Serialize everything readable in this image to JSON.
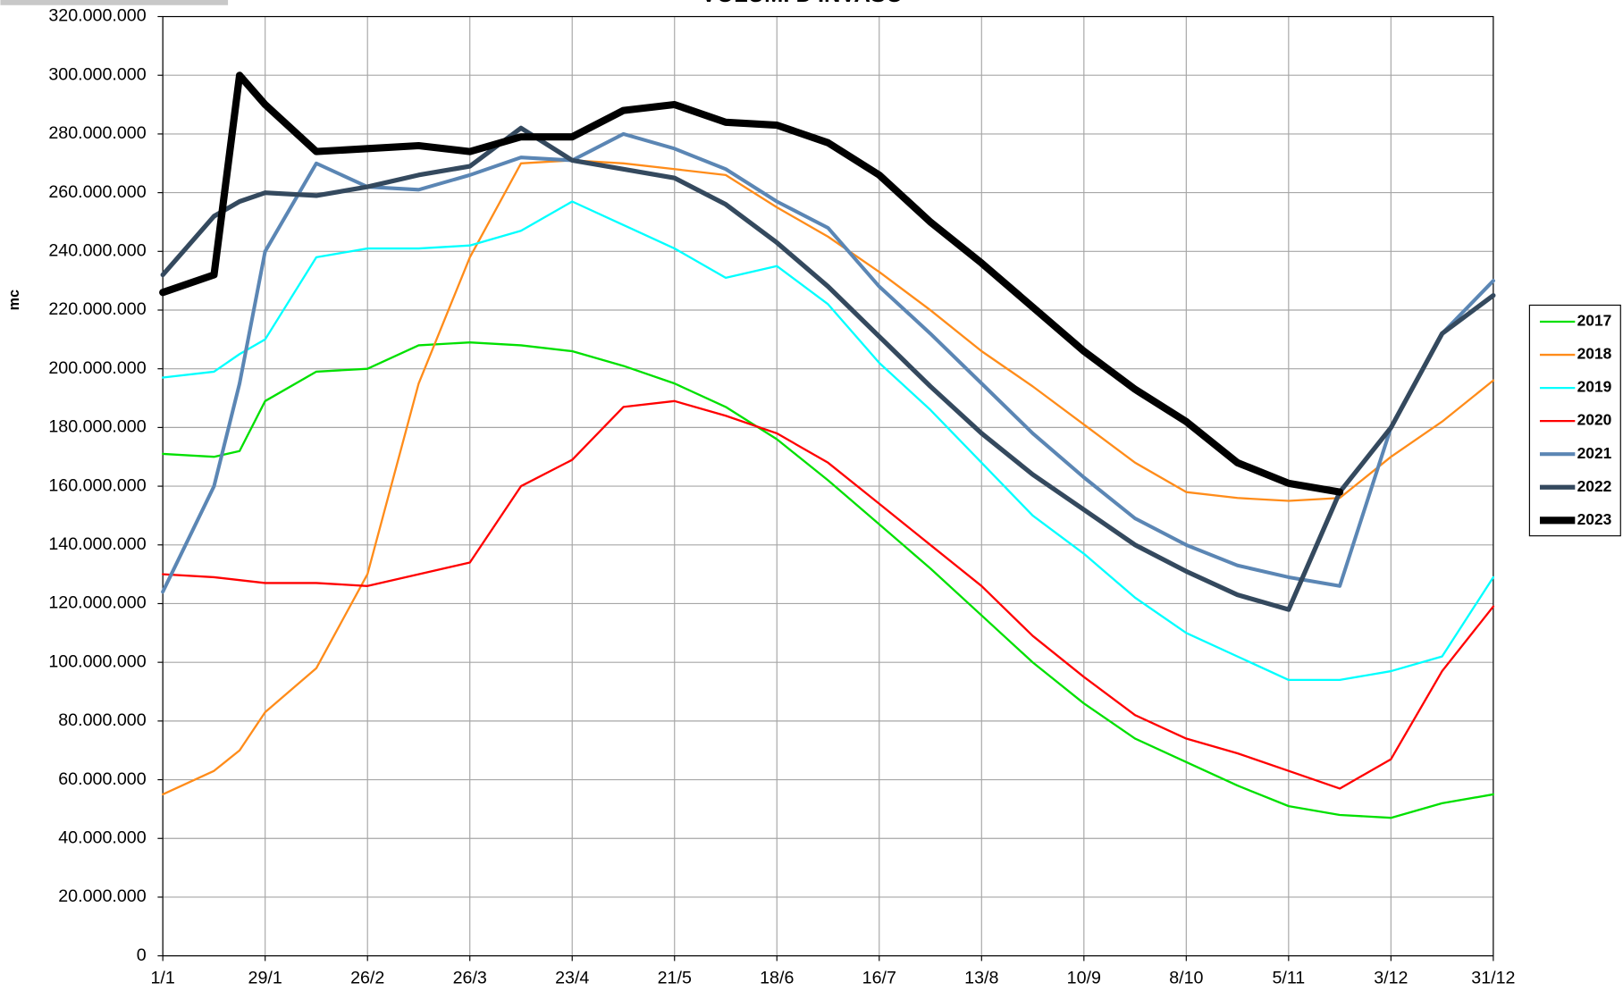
{
  "chart_data": {
    "type": "line",
    "title": "VOLUMI D'INVASO",
    "ylabel": "mc",
    "x": [
      1,
      15,
      22,
      29,
      43,
      57,
      71,
      85,
      99,
      113,
      127,
      141,
      155,
      169,
      183,
      197,
      211,
      225,
      239,
      253,
      267,
      281,
      295,
      309,
      323,
      337,
      351,
      365
    ],
    "series": [
      {
        "name": "2017",
        "color": "#00e000",
        "values": [
          171000000,
          170000000,
          172000000,
          189000000,
          199000000,
          200000000,
          208000000,
          209000000,
          208000000,
          206000000,
          201000000,
          195000000,
          187000000,
          176000000,
          162000000,
          147000000,
          132000000,
          116000000,
          100000000,
          86000000,
          74000000,
          66000000,
          58000000,
          51000000,
          48000000,
          47000000,
          52000000,
          55000000
        ]
      },
      {
        "name": "2018",
        "color": "#ff8c1a",
        "values": [
          55000000,
          63000000,
          70000000,
          83000000,
          98000000,
          130000000,
          195000000,
          238000000,
          270000000,
          271000000,
          270000000,
          268000000,
          266000000,
          255000000,
          245000000,
          233000000,
          220000000,
          206000000,
          194000000,
          181000000,
          168000000,
          158000000,
          156000000,
          155000000,
          156000000,
          170000000,
          182000000,
          196000000
        ]
      },
      {
        "name": "2019",
        "color": "#00ffff",
        "values": [
          197000000,
          199000000,
          205000000,
          210000000,
          238000000,
          241000000,
          241000000,
          242000000,
          247000000,
          257000000,
          249000000,
          241000000,
          231000000,
          235000000,
          222000000,
          202000000,
          186000000,
          168000000,
          150000000,
          137000000,
          122000000,
          110000000,
          102000000,
          94000000,
          94000000,
          97000000,
          102000000,
          129000000
        ]
      },
      {
        "name": "2020",
        "color": "#ff0000",
        "values": [
          130000000,
          129000000,
          128000000,
          127000000,
          127000000,
          126000000,
          130000000,
          134000000,
          160000000,
          169000000,
          187000000,
          189000000,
          184000000,
          178000000,
          168000000,
          154000000,
          140000000,
          126000000,
          109000000,
          95000000,
          82000000,
          74000000,
          69000000,
          63000000,
          57000000,
          67000000,
          97000000,
          119000000
        ]
      },
      {
        "name": "2021",
        "color": "#5b86b4",
        "values": [
          124000000,
          160000000,
          195000000,
          240000000,
          270000000,
          262000000,
          261000000,
          266000000,
          272000000,
          271000000,
          280000000,
          275000000,
          268000000,
          257000000,
          248000000,
          228000000,
          212000000,
          195000000,
          178000000,
          163000000,
          149000000,
          140000000,
          133000000,
          129000000,
          126000000,
          180000000,
          212000000,
          230000000
        ]
      },
      {
        "name": "2022",
        "color": "#34495e",
        "values": [
          232000000,
          252000000,
          257000000,
          260000000,
          259000000,
          262000000,
          266000000,
          269000000,
          282000000,
          271000000,
          268000000,
          265000000,
          256000000,
          243000000,
          228000000,
          211000000,
          194000000,
          178000000,
          164000000,
          152000000,
          140000000,
          131000000,
          123000000,
          118000000,
          158000000,
          180000000,
          212000000,
          225000000
        ]
      },
      {
        "name": "2023",
        "color": "#000000",
        "values": [
          226000000,
          232000000,
          300000000,
          290000000,
          274000000,
          275000000,
          276000000,
          274000000,
          279000000,
          279000000,
          288000000,
          290000000,
          284000000,
          283000000,
          277000000,
          266000000,
          250000000,
          236000000,
          221000000,
          206000000,
          193000000,
          182000000,
          168000000,
          161000000,
          158000000,
          null,
          null,
          null
        ]
      }
    ],
    "xlim": [
      1,
      365
    ],
    "xticks": [
      {
        "value": 1,
        "label": "1/1"
      },
      {
        "value": 29,
        "label": "29/1"
      },
      {
        "value": 57,
        "label": "26/2"
      },
      {
        "value": 85,
        "label": "26/3"
      },
      {
        "value": 113,
        "label": "23/4"
      },
      {
        "value": 141,
        "label": "21/5"
      },
      {
        "value": 169,
        "label": "18/6"
      },
      {
        "value": 197,
        "label": "16/7"
      },
      {
        "value": 225,
        "label": "13/8"
      },
      {
        "value": 253,
        "label": "10/9"
      },
      {
        "value": 281,
        "label": "8/10"
      },
      {
        "value": 309,
        "label": "5/11"
      },
      {
        "value": 337,
        "label": "3/12"
      },
      {
        "value": 365,
        "label": "31/12"
      }
    ],
    "ylim": [
      0,
      320000000
    ],
    "yticks": [
      0,
      {
        "value": 20000000,
        "label": "20.000.000"
      },
      {
        "value": 40000000,
        "label": "40.000.000"
      },
      {
        "value": 60000000,
        "label": "60.000.000"
      },
      {
        "value": 80000000,
        "label": "80.000.000"
      },
      {
        "value": 100000000,
        "label": "100.000.000"
      },
      {
        "value": 120000000,
        "label": "120.000.000"
      },
      {
        "value": 140000000,
        "label": "140.000.000"
      },
      {
        "value": 160000000,
        "label": "160.000.000"
      },
      {
        "value": 180000000,
        "label": "180.000.000"
      },
      {
        "value": 200000000,
        "label": "200.000.000"
      },
      {
        "value": 220000000,
        "label": "220.000.000"
      },
      {
        "value": 240000000,
        "label": "240.000.000"
      },
      {
        "value": 260000000,
        "label": "260.000.000"
      },
      {
        "value": 280000000,
        "label": "280.000.000"
      },
      {
        "value": 300000000,
        "label": "300.000.000"
      },
      {
        "value": 320000000,
        "label": "320.000.000"
      }
    ],
    "grid": true,
    "legend": "right"
  }
}
